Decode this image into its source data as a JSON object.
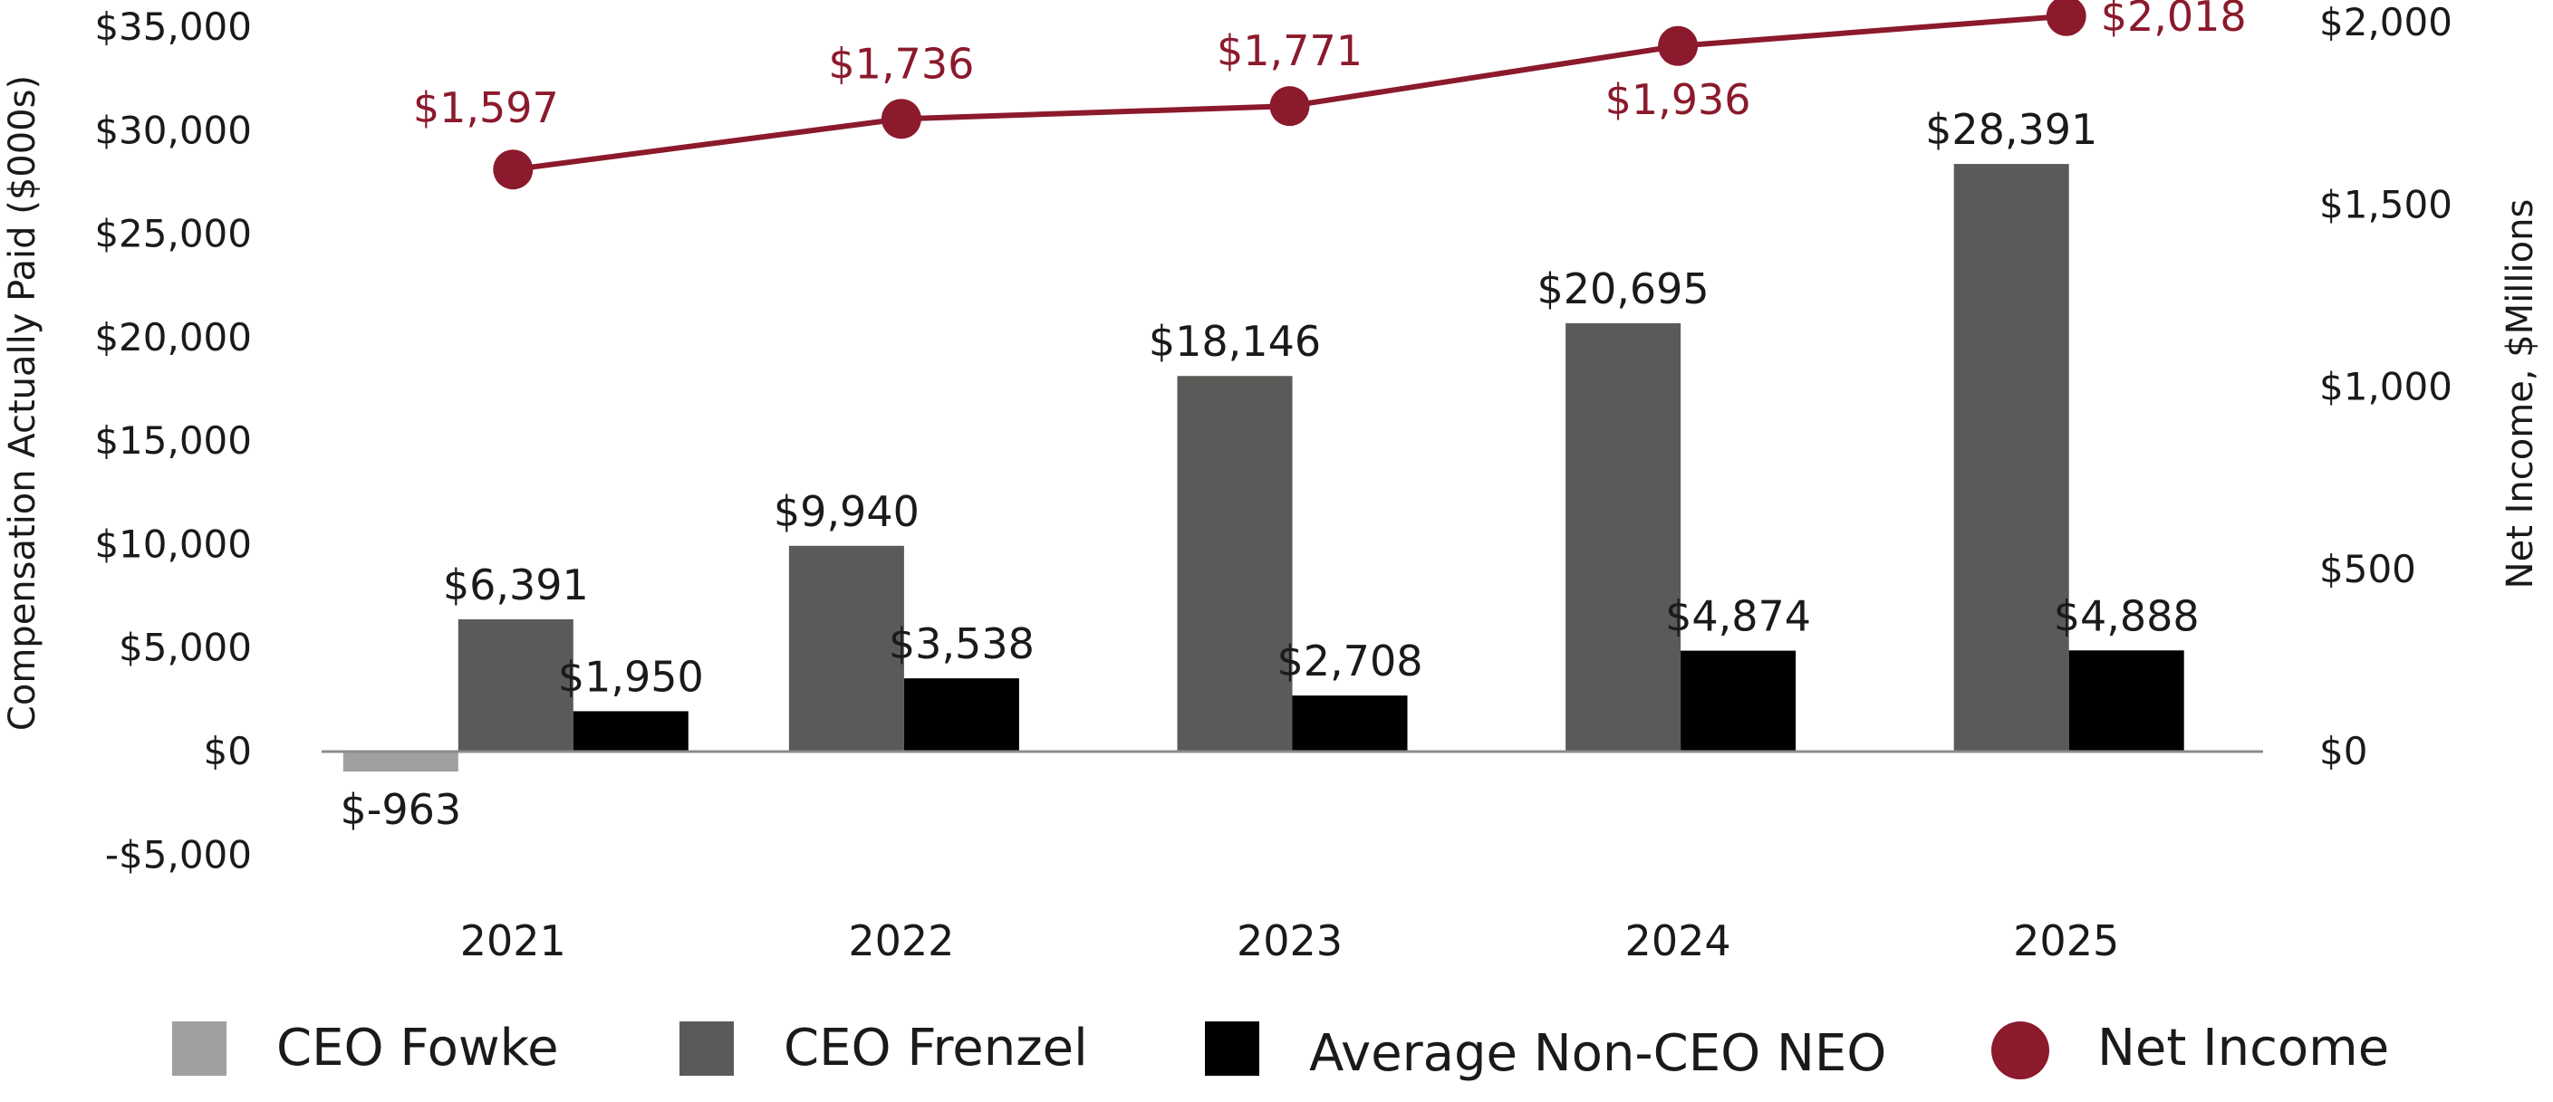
{
  "chart_data": {
    "type": "bar",
    "categories": [
      "2021",
      "2022",
      "2023",
      "2024",
      "2025"
    ],
    "ylabel": "Compensation Actually Paid ($000s)",
    "y2label": "Net Income, $Millions",
    "ylim": [
      -5000,
      35000
    ],
    "y2lim": [
      0,
      2000
    ],
    "y_ticks": [
      {
        "value": 35000,
        "label": "$35,000"
      },
      {
        "value": 30000,
        "label": "$30,000"
      },
      {
        "value": 25000,
        "label": "$25,000"
      },
      {
        "value": 20000,
        "label": "$20,000"
      },
      {
        "value": 15000,
        "label": "$15,000"
      },
      {
        "value": 10000,
        "label": "$10,000"
      },
      {
        "value": 5000,
        "label": "$5,000"
      },
      {
        "value": 0,
        "label": "$0"
      },
      {
        "value": -5000,
        "label": "-$5,000"
      }
    ],
    "y2_ticks": [
      {
        "value": 2000,
        "label": "$2,000"
      },
      {
        "value": 1500,
        "label": "$1,500"
      },
      {
        "value": 1000,
        "label": "$1,000"
      },
      {
        "value": 500,
        "label": "$500"
      },
      {
        "value": 0,
        "label": "$0"
      }
    ],
    "grid": false,
    "legend_position": "bottom",
    "series": [
      {
        "name": "CEO Fowke",
        "type": "bar",
        "axis": "left",
        "color": "#a0a0a0",
        "values": [
          -963,
          null,
          null,
          null,
          null
        ],
        "labels": [
          "$-963",
          "",
          "",
          "",
          ""
        ]
      },
      {
        "name": "CEO Frenzel",
        "type": "bar",
        "axis": "left",
        "color": "#5a5a58",
        "values": [
          6391,
          9940,
          18146,
          20695,
          28391
        ],
        "labels": [
          "$6,391",
          "$9,940",
          "$18,146",
          "$20,695",
          "$28,391"
        ]
      },
      {
        "name": "Average Non-CEO NEO",
        "type": "bar",
        "axis": "left",
        "color": "#000000",
        "values": [
          1950,
          3538,
          2708,
          4874,
          4888
        ],
        "labels": [
          "$1,950",
          "$3,538",
          "$2,708",
          "$4,874",
          "$4,888"
        ]
      },
      {
        "name": "Net Income",
        "type": "line",
        "axis": "right",
        "color": "#8b1a2c",
        "values": [
          1597,
          1736,
          1771,
          1936,
          2018
        ],
        "labels": [
          "$1,597",
          "$1,736",
          "$1,771",
          "$1,936",
          "$2,018"
        ]
      }
    ]
  }
}
